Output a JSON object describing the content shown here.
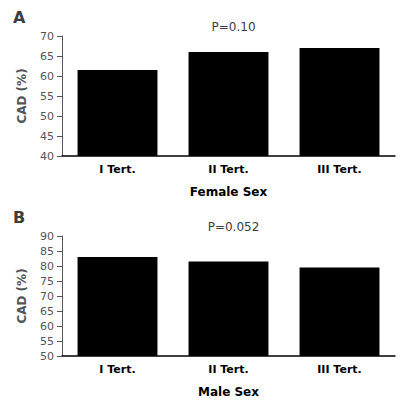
{
  "chart_data": [
    {
      "type": "bar",
      "title": "A",
      "annotation": "P=0.10",
      "categories": [
        "I Tert.",
        "II Tert.",
        "III Tert."
      ],
      "values": [
        61.5,
        66.0,
        67.0
      ],
      "color": "#000000",
      "xlabel": "Female Sex",
      "ylabel": "CAD (%)",
      "ylim": [
        40,
        70
      ],
      "yticks": [
        40,
        45,
        50,
        55,
        60,
        65,
        70
      ],
      "grid": false
    },
    {
      "type": "bar",
      "title": "B",
      "annotation": "P=0.052",
      "categories": [
        "I Tert.",
        "II Tert.",
        "III Tert."
      ],
      "values": [
        83.0,
        81.5,
        79.5
      ],
      "color": "#000000",
      "xlabel": "Male Sex",
      "ylabel": "CAD (%)",
      "ylim": [
        50,
        90
      ],
      "yticks": [
        50,
        55,
        60,
        65,
        70,
        75,
        80,
        85,
        90
      ],
      "grid": false
    }
  ]
}
